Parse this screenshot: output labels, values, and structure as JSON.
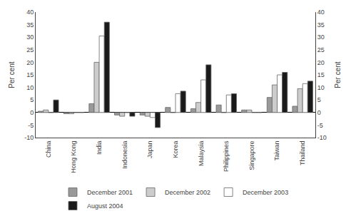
{
  "chart_data": {
    "type": "bar",
    "categories": [
      "China",
      "Hong Kong",
      "India",
      "Indonesia",
      "Japan",
      "Korea",
      "Malaysia",
      "Philippines",
      "Singapore",
      "Taiwan",
      "Thailand"
    ],
    "series": [
      {
        "name": "December 2001",
        "color": "#999999",
        "values": [
          0.5,
          -0.5,
          3.5,
          -1.0,
          -1.0,
          2.0,
          1.5,
          3.0,
          1.0,
          6.0,
          2.5
        ]
      },
      {
        "name": "December 2002",
        "color": "#cccccc",
        "values": [
          1.0,
          -0.5,
          20.0,
          -1.5,
          -1.5,
          0.0,
          4.0,
          0.0,
          1.0,
          11.0,
          9.5
        ]
      },
      {
        "name": "December 2003",
        "color": "white",
        "values": [
          0.0,
          0.0,
          30.5,
          0.0,
          -2.0,
          7.5,
          13.0,
          7.0,
          0.0,
          15.0,
          11.5
        ]
      },
      {
        "name": "August 2004",
        "color": "#1a1a1a",
        "values": [
          5.0,
          0.0,
          36.0,
          -1.5,
          -6.0,
          8.5,
          19.0,
          7.5,
          0.0,
          16.0,
          12.5
        ]
      }
    ],
    "ylabel": "Per cent",
    "y2label": "Per cent",
    "ylim": [
      -10,
      40
    ],
    "yticks": [
      -10,
      -5,
      0,
      5,
      10,
      15,
      20,
      25,
      30,
      35,
      40
    ],
    "y2lim": [
      -10,
      40
    ],
    "y2ticks": [
      -10,
      -5,
      0,
      5,
      10,
      15,
      20,
      25,
      30,
      35,
      40
    ],
    "grid": false,
    "legend": "bottom"
  }
}
